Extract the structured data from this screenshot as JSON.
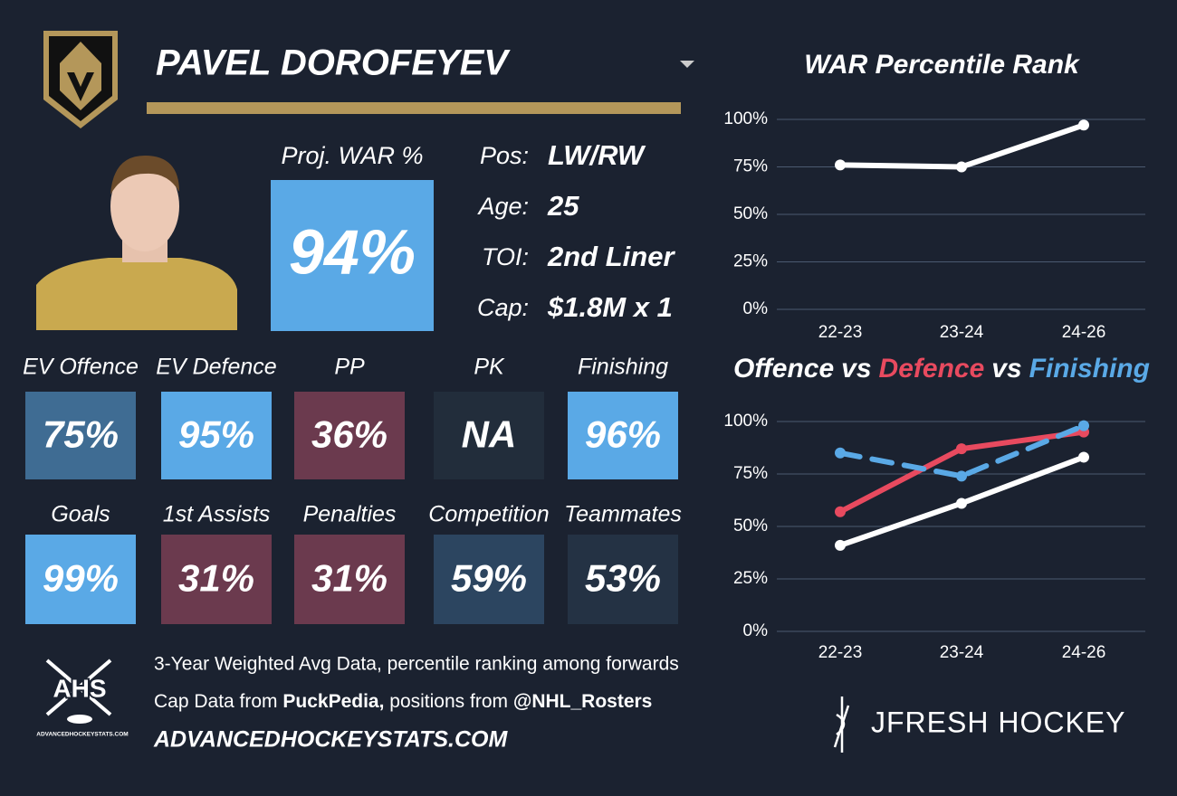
{
  "player": {
    "name": "PAVEL DOROFEYEV",
    "proj_label": "Proj. WAR %",
    "proj_value": "94%",
    "proj_color": "#5aa9e6"
  },
  "info": [
    {
      "label": "Pos:",
      "value": "LW/RW"
    },
    {
      "label": "Age:",
      "value": "25"
    },
    {
      "label": "TOI:",
      "value": "2nd Liner"
    },
    {
      "label": "Cap:",
      "value": "$1.8M x 1"
    }
  ],
  "tiles": [
    {
      "label": "EV Offence",
      "value": "75%",
      "color": "#3f6c93"
    },
    {
      "label": "EV Defence",
      "value": "95%",
      "color": "#5aa9e6"
    },
    {
      "label": "PP",
      "value": "36%",
      "color": "#6b3a4e"
    },
    {
      "label": "PK",
      "value": "NA",
      "color": "#222d3b"
    },
    {
      "label": "Finishing",
      "value": "96%",
      "color": "#5aa9e6"
    },
    {
      "label": "Goals",
      "value": "99%",
      "color": "#5aa9e6"
    },
    {
      "label": "1st Assists",
      "value": "31%",
      "color": "#6b3a4e"
    },
    {
      "label": "Penalties",
      "value": "31%",
      "color": "#6b3a4e"
    },
    {
      "label": "Competition",
      "value": "59%",
      "color": "#2c4560"
    },
    {
      "label": "Teammates",
      "value": "53%",
      "color": "#243244"
    }
  ],
  "footer": {
    "line1": "3-Year Weighted Avg Data, percentile ranking among forwards",
    "line2_a": "Cap Data from ",
    "line2_b": "PuckPedia,",
    "line2_c": " positions from ",
    "line2_d": "@NHL_Rosters",
    "site": "ADVANCEDHOCKEYSTATS.COM",
    "logo": "AHS",
    "logo_small": "ADVANCEDHOCKEYSTATS.COM",
    "brand": "JFRESH HOCKEY"
  },
  "chart_data": [
    {
      "type": "line",
      "title": "WAR Percentile Rank",
      "categories": [
        "22-23",
        "23-24",
        "24-26"
      ],
      "series": [
        {
          "name": "WAR",
          "color": "#ffffff",
          "values": [
            76,
            75,
            97
          ]
        }
      ],
      "ylim": [
        0,
        100
      ],
      "yticks": [
        {
          "value": 0,
          "label": "0%"
        },
        {
          "value": 25,
          "label": "25%"
        },
        {
          "value": 50,
          "label": "50%"
        },
        {
          "value": 75,
          "label": "75%"
        },
        {
          "value": 100,
          "label": "100%"
        }
      ],
      "grid": true
    },
    {
      "type": "line",
      "title_joiner": "vs",
      "categories": [
        "22-23",
        "23-24",
        "24-26"
      ],
      "series": [
        {
          "name": "Offence",
          "color": "#ffffff",
          "values": [
            41,
            61,
            83
          ]
        },
        {
          "name": "Defence",
          "color": "#e84a5f",
          "values": [
            57,
            87,
            95
          ]
        },
        {
          "name": "Finishing",
          "color": "#5aa9e6",
          "values": [
            85,
            74,
            98
          ],
          "dashed": true
        }
      ],
      "ylim": [
        0,
        100
      ],
      "yticks": [
        {
          "value": 0,
          "label": "0%"
        },
        {
          "value": 25,
          "label": "25%"
        },
        {
          "value": 50,
          "label": "50%"
        },
        {
          "value": 75,
          "label": "75%"
        },
        {
          "value": 100,
          "label": "100%"
        }
      ],
      "grid": true
    }
  ]
}
